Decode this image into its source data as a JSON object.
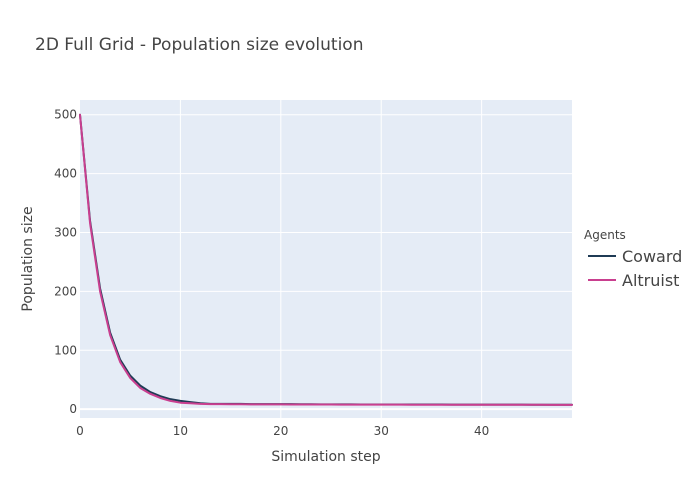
{
  "chart_data": {
    "type": "line",
    "title": "2D Full Grid - Population size evolution",
    "xlabel": "Simulation step",
    "ylabel": "Population size",
    "xlim": [
      0,
      49
    ],
    "ylim": [
      -15,
      525
    ],
    "xticks": [
      0,
      10,
      20,
      30,
      40
    ],
    "yticks": [
      0,
      100,
      200,
      300,
      400,
      500
    ],
    "grid": true,
    "legend": {
      "title": "Agents",
      "placement": "right"
    },
    "plot_background": "#e5ecf6",
    "series": [
      {
        "name": "Coward",
        "color": "#1f3b55",
        "x": [
          0,
          1,
          2,
          3,
          4,
          5,
          6,
          7,
          8,
          9,
          10,
          11,
          12,
          13,
          14,
          15,
          16,
          17,
          18,
          19,
          20,
          21,
          22,
          23,
          24,
          25,
          26,
          27,
          28,
          29,
          30,
          31,
          32,
          33,
          34,
          35,
          36,
          37,
          38,
          39,
          40,
          41,
          42,
          43,
          44,
          45,
          46,
          47,
          48,
          49
        ],
        "y": [
          500,
          320,
          205,
          130,
          84,
          57,
          40,
          29,
          22,
          17,
          14,
          12,
          10,
          9,
          9,
          9,
          9,
          8.5,
          8.5,
          8.5,
          8.5,
          8.5,
          8.3,
          8.3,
          8.2,
          8.2,
          8.1,
          8.1,
          8,
          8,
          8,
          8,
          8,
          8,
          7.9,
          7.9,
          7.9,
          7.8,
          7.8,
          7.8,
          7.8,
          7.7,
          7.7,
          7.7,
          7.7,
          7.6,
          7.6,
          7.6,
          7.6,
          7.6
        ]
      },
      {
        "name": "Altruist",
        "color": "#c93f8f",
        "x": [
          0,
          1,
          2,
          3,
          4,
          5,
          6,
          7,
          8,
          9,
          10,
          11,
          12,
          13,
          14,
          15,
          16,
          17,
          18,
          19,
          20,
          21,
          22,
          23,
          24,
          25,
          26,
          27,
          28,
          29,
          30,
          31,
          32,
          33,
          34,
          35,
          36,
          37,
          38,
          39,
          40,
          41,
          42,
          43,
          44,
          45,
          46,
          47,
          48,
          49
        ],
        "y": [
          500,
          316,
          200,
          126,
          80,
          53,
          36,
          26,
          19,
          14,
          11,
          10,
          9,
          8.5,
          8.5,
          8.4,
          8.3,
          8.2,
          8.2,
          8.1,
          8.1,
          8,
          8,
          7.9,
          7.9,
          7.9,
          7.8,
          7.8,
          7.8,
          7.7,
          7.7,
          7.7,
          7.7,
          7.6,
          7.6,
          7.6,
          7.6,
          7.5,
          7.5,
          7.5,
          7.5,
          7.5,
          7.4,
          7.4,
          7.4,
          7.4,
          7.4,
          7.3,
          7.3,
          7.3
        ]
      }
    ]
  }
}
